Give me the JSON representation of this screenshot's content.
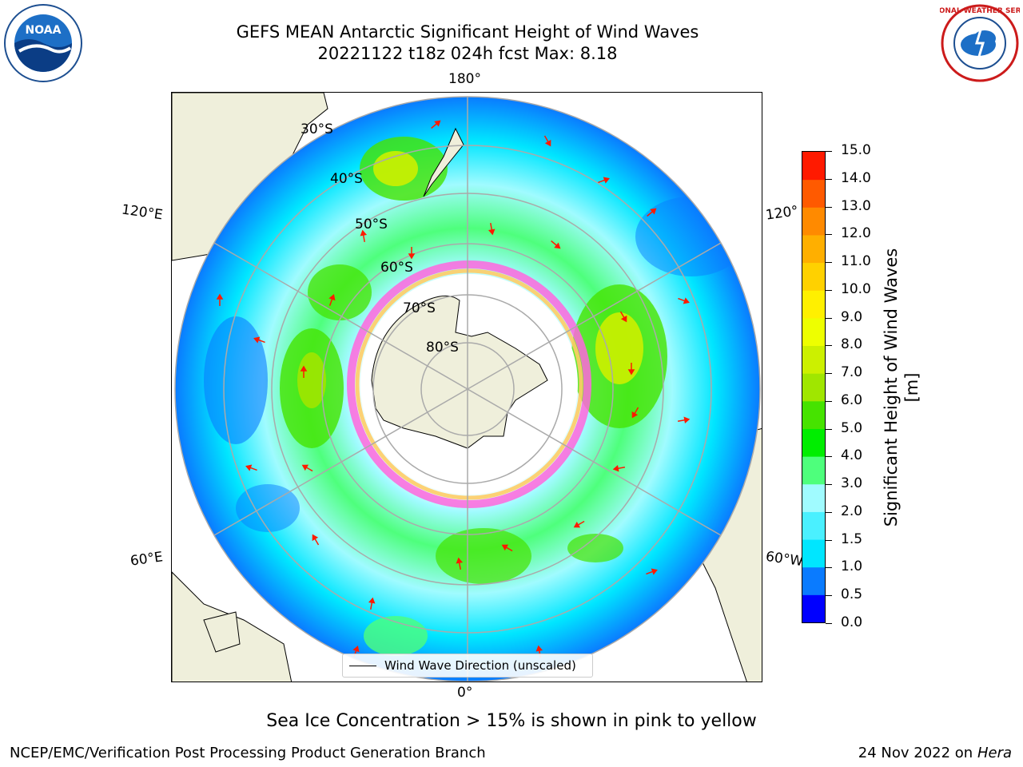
{
  "title_line1": "GEFS MEAN Antarctic Significant Height of Wind Waves",
  "title_line2": "20221122 t18z 024h fcst   Max: 8.18",
  "longitude_labels": {
    "top": "180°",
    "bottom": "0°",
    "left_upper": "120°E",
    "left_lower": "60°E",
    "right_upper": "120°",
    "right_lower": "60°W"
  },
  "latitude_labels": [
    "30°S",
    "40°S",
    "50°S",
    "60°S",
    "70°S",
    "80°S"
  ],
  "legend_label": "Wind Wave Direction (unscaled)",
  "colorbar": {
    "label": "Significant Height of Wind Waves [m]",
    "ticks": [
      "0.0",
      "0.5",
      "1.0",
      "1.5",
      "2.0",
      "3.0",
      "4.0",
      "5.0",
      "6.0",
      "7.0",
      "8.0",
      "9.0",
      "10.0",
      "11.0",
      "12.0",
      "13.0",
      "14.0",
      "15.0"
    ],
    "colors": [
      "#0000ff",
      "#0a7bff",
      "#00e6ff",
      "#4af0ff",
      "#a0fbff",
      "#4eff7c",
      "#00ee00",
      "#46e300",
      "#a0e600",
      "#ccf000",
      "#eeff00",
      "#fff000",
      "#ffd100",
      "#ffaf00",
      "#ff8a00",
      "#ff5a00",
      "#ff1a00"
    ]
  },
  "sea_ice_note": "Sea Ice Concentration > 15% is shown in pink to yellow",
  "footer_left": "NCEP/EMC/Verification Post Processing Product Generation Branch",
  "footer_date": "24 Nov 2022 on",
  "footer_host": "Hera",
  "logos": {
    "left": "NOAA",
    "right": "NATIONAL WEATHER SERVICE"
  }
}
